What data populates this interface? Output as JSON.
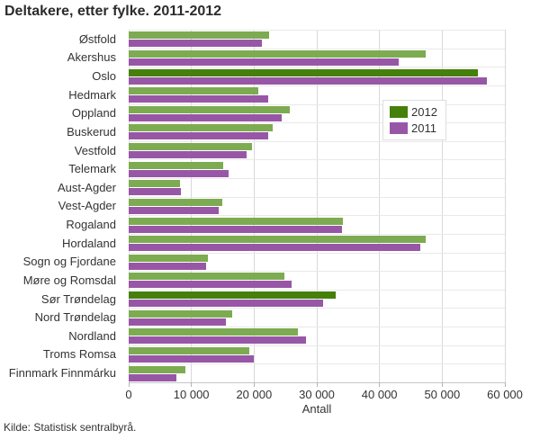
{
  "chart_data": {
    "type": "bar",
    "orientation": "horizontal",
    "title": "Deltakere, etter fylke. 2011-2012",
    "xlabel": "Antall",
    "xlim": [
      0,
      60000
    ],
    "xtick_values": [
      0,
      10000,
      20000,
      30000,
      40000,
      50000,
      60000
    ],
    "xtick_labels": [
      "0",
      "10 000",
      "20 000",
      "30 000",
      "40 000",
      "50 000",
      "60 000"
    ],
    "grid": "vertical-and-row-separators",
    "legend_position": "inside-upper-right",
    "categories": [
      "Østfold",
      "Akershus",
      "Oslo",
      "Hedmark",
      "Oppland",
      "Buskerud",
      "Vestfold",
      "Telemark",
      "Aust-Agder",
      "Vest-Agder",
      "Rogaland",
      "Hordaland",
      "Sogn og Fjordane",
      "Møre og Romsdal",
      "Sør Trøndelag",
      "Nord Trøndelag",
      "Nordland",
      "Troms Romsa",
      "Finnmark Finnmárku"
    ],
    "series": [
      {
        "name": "2012",
        "color": "#7dab51",
        "highlight_color": "#45800b",
        "legend_color": "#45800b",
        "values": [
          22400,
          47300,
          55700,
          20600,
          25700,
          23000,
          19700,
          15000,
          8200,
          14900,
          34200,
          47300,
          12600,
          24900,
          33000,
          16500,
          27000,
          19300,
          9100
        ]
      },
      {
        "name": "2011",
        "color": "#9857a6",
        "legend_color": "#9857a6",
        "values": [
          21300,
          43100,
          57100,
          22300,
          24400,
          22300,
          18800,
          15900,
          8300,
          14300,
          34000,
          46500,
          12300,
          26000,
          31000,
          15500,
          28300,
          20000,
          7600
        ]
      }
    ],
    "highlighted_categories": [
      "Oslo",
      "Sør Trøndelag"
    ],
    "source": "Kilde: Statistisk sentralbyrå."
  },
  "colors": {
    "gridline": "#d9d9d9",
    "row_separator": "#e9e9e9",
    "axis_line": "#c6c6c6",
    "text": "#333333",
    "background": "#ffffff"
  }
}
